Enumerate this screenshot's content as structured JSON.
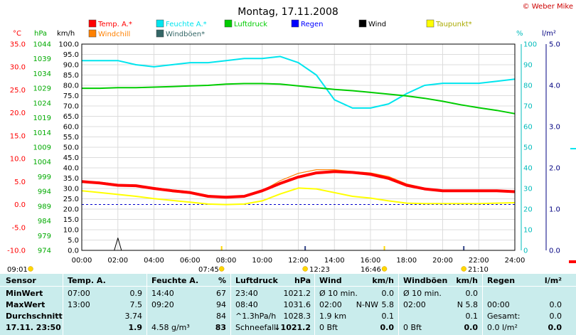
{
  "header": {
    "title": "Montag, 17.11.2008",
    "copyright": "© Weber Mike"
  },
  "axes_titles": {
    "temp": "°C",
    "hpa": "hPa",
    "kmh": "km/h",
    "pct": "%",
    "lm2": "l/m²"
  },
  "legend": [
    {
      "name": "Temp. A.*",
      "color": "#ff0000"
    },
    {
      "name": "Feuchte A.*",
      "color": "#00e5ee"
    },
    {
      "name": "Luftdruck",
      "color": "#00cc00"
    },
    {
      "name": "Regen",
      "color": "#0000ff"
    },
    {
      "name": "Wind",
      "color": "#000000"
    },
    {
      "name": "Taupunkt*",
      "color": "#ffff00"
    },
    {
      "name": "Windchill",
      "color": "#ff8000"
    },
    {
      "name": "Windböen*",
      "color": "#336666"
    }
  ],
  "sun": {
    "start": "09:01",
    "sunrise": "07:45",
    "noon": "12:23",
    "moon": "16:46",
    "sunset": "21:10"
  },
  "chart_data": {
    "type": "line",
    "title": "Montag, 17.11.2008",
    "x_ticks": [
      "00:00",
      "02:00",
      "04:00",
      "06:00",
      "08:00",
      "10:00",
      "12:00",
      "14:00",
      "16:00",
      "18:00",
      "20:00",
      "22:00",
      "24:00"
    ],
    "xlim": [
      0,
      24
    ],
    "axes": {
      "temp": {
        "ylim": [
          -10,
          35
        ],
        "ticks": [
          "35.0",
          "30.0",
          "25.0",
          "20.0",
          "15.0",
          "10.0",
          "5.0",
          "0.0",
          "-5.0",
          "-10.0"
        ]
      },
      "hpa": {
        "ylim": [
          974,
          1044
        ],
        "ticks": [
          "1044",
          "1039",
          "1034",
          "1029",
          "1024",
          "1019",
          "1014",
          "1009",
          "1004",
          "999",
          "994",
          "989",
          "984",
          "979",
          "974"
        ]
      },
      "kmh": {
        "ylim": [
          0,
          100
        ],
        "ticks": [
          "100.0",
          "95.0",
          "90.0",
          "85.0",
          "80.0",
          "75.0",
          "70.0",
          "65.0",
          "60.0",
          "55.0",
          "50.0",
          "45.0",
          "40.0",
          "35.0",
          "30.0",
          "25.0",
          "20.0",
          "15.0",
          "10.0",
          "5.0",
          "0.0"
        ]
      },
      "pct": {
        "ylim": [
          0,
          100
        ],
        "ticks": [
          "100",
          "90",
          "80",
          "70",
          "60",
          "50",
          "40",
          "30",
          "20",
          "10",
          "0"
        ]
      },
      "lm2": {
        "ylim": [
          0,
          5
        ],
        "ticks": [
          "5.0",
          "4.0",
          "3.0",
          "2.0",
          "1.0",
          "0.0"
        ]
      }
    },
    "series": [
      {
        "name": "Feuchte A.*",
        "axis": "pct",
        "color": "#00e5ee",
        "width": 2,
        "x": [
          0,
          1,
          2,
          3,
          4,
          5,
          6,
          7,
          8,
          9,
          10,
          11,
          12,
          13,
          14,
          15,
          16,
          17,
          18,
          19,
          20,
          21,
          22,
          23,
          24
        ],
        "y": [
          92,
          92,
          92,
          90,
          89,
          90,
          91,
          91,
          92,
          93,
          93,
          94,
          91,
          85,
          73,
          69,
          69,
          71,
          76,
          80,
          81,
          81,
          81,
          82,
          83
        ]
      },
      {
        "name": "Luftdruck",
        "axis": "hpa",
        "color": "#00cc00",
        "width": 2,
        "x": [
          0,
          1,
          2,
          3,
          4,
          5,
          6,
          7,
          8,
          9,
          10,
          11,
          12,
          13,
          14,
          15,
          16,
          17,
          18,
          19,
          20,
          21,
          22,
          23,
          24
        ],
        "y": [
          1029.0,
          1029.0,
          1029.2,
          1029.2,
          1029.4,
          1029.6,
          1029.8,
          1030.0,
          1030.4,
          1030.6,
          1030.6,
          1030.4,
          1029.8,
          1029.2,
          1028.6,
          1028.2,
          1027.6,
          1027.0,
          1026.4,
          1025.6,
          1024.6,
          1023.4,
          1022.4,
          1021.5,
          1020.4
        ]
      },
      {
        "name": "Taupunkt*",
        "axis": "temp",
        "color": "#ffff00",
        "width": 2,
        "x": [
          0,
          1,
          2,
          3,
          4,
          5,
          6,
          7,
          8,
          9,
          10,
          11,
          12,
          13,
          14,
          15,
          16,
          17,
          18,
          19,
          20,
          21,
          22,
          23,
          24
        ],
        "y": [
          3.0,
          2.6,
          2.2,
          1.8,
          1.3,
          0.9,
          0.5,
          0.1,
          0.0,
          0.1,
          0.8,
          2.3,
          3.6,
          3.4,
          2.6,
          1.8,
          1.4,
          0.8,
          0.3,
          0.2,
          0.2,
          0.2,
          0.2,
          0.3,
          0.4
        ]
      },
      {
        "name": "Windchill",
        "axis": "temp",
        "color": "#ff8000",
        "width": 1.2,
        "x": [
          0,
          1,
          2,
          3,
          4,
          5,
          6,
          7,
          8,
          9,
          10,
          11,
          12,
          13,
          14,
          15,
          16,
          17,
          18,
          19,
          20,
          21,
          22,
          23,
          24
        ],
        "y": [
          5.1,
          4.9,
          4.4,
          4.1,
          3.7,
          3.2,
          2.8,
          2.0,
          1.7,
          1.9,
          3.0,
          5.2,
          6.8,
          7.6,
          7.6,
          7.2,
          6.9,
          6.1,
          4.5,
          3.6,
          3.0,
          3.0,
          3.0,
          3.0,
          2.9
        ]
      },
      {
        "name": "Temp. A.*",
        "axis": "temp",
        "color": "#ff0000",
        "width": 4,
        "x": [
          0,
          1,
          2,
          3,
          4,
          5,
          6,
          7,
          8,
          9,
          10,
          11,
          12,
          13,
          14,
          15,
          16,
          17,
          18,
          19,
          20,
          21,
          22,
          23,
          24
        ],
        "y": [
          5.0,
          4.7,
          4.2,
          4.1,
          3.5,
          3.0,
          2.6,
          1.8,
          1.6,
          1.8,
          3.0,
          4.6,
          6.0,
          6.9,
          7.2,
          7.0,
          6.6,
          5.7,
          4.2,
          3.4,
          3.0,
          3.0,
          3.0,
          3.0,
          2.8
        ]
      },
      {
        "name": "Windböen*",
        "axis": "kmh",
        "color": "#000000",
        "width": 1,
        "x": [
          0,
          1.5,
          1.8,
          2.0,
          2.2,
          2.4,
          2.6,
          3.0,
          24
        ],
        "y": [
          0,
          0,
          0,
          6,
          0,
          0,
          0,
          0,
          0
        ]
      }
    ],
    "reference_line": {
      "axis": "temp",
      "value": 0,
      "color": "#0000cc"
    },
    "sun_markers_x": [
      7.75,
      12.38,
      16.77,
      21.17
    ]
  },
  "table": {
    "headers": {
      "sensor": "Sensor",
      "temp": "Temp. A.",
      "feuchte": "Feuchte A.",
      "feuchte_unit": "%",
      "luft": "Luftdruck",
      "luft_unit": "hPa",
      "wind": "Wind",
      "wind_unit": "km/h",
      "boen": "Windböen",
      "boen_unit": "km/h",
      "regen": "Regen",
      "regen_unit": "l/m²"
    },
    "rows": [
      {
        "label": "MinWert",
        "t_time": "07:00",
        "t_val": "0.9",
        "f_time": "14:40",
        "f_val": "67",
        "l_time": "23:40",
        "l_val": "1021.2",
        "w_time": "Ø 10 min.",
        "w_dir": "",
        "w_val": "0.0",
        "b_time": "Ø 10 min.",
        "b_dir": "",
        "b_val": "0.0",
        "r_time": "",
        "r_val": ""
      },
      {
        "label": "MaxWert",
        "t_time": "13:00",
        "t_val": "7.5",
        "f_time": "09:20",
        "f_val": "94",
        "l_time": "08:40",
        "l_val": "1031.6",
        "w_time": "02:00",
        "w_dir": "N-NW",
        "w_val": "5.8",
        "b_time": "02:00",
        "b_dir": "N",
        "b_val": "5.8",
        "r_time": "00:00",
        "r_val": "0.0"
      },
      {
        "label": "Durchschnitt",
        "t_time": "",
        "t_val": "3.74",
        "f_time": "",
        "f_val": "84",
        "l_time": "^1.3hPa/h",
        "l_val": "1028.3",
        "w_time": "1.9 km",
        "w_dir": "",
        "w_val": "0.1",
        "b_time": "",
        "b_dir": "",
        "b_val": "0.1",
        "r_time": "Gesamt:",
        "r_val": "0.0"
      },
      {
        "label": "17.11. 23:50",
        "t_time": "",
        "t_val": "1.9",
        "f_time": "4.58 g/m³",
        "f_val": "83",
        "l_time": "Schneefall",
        "l_arrow": "↓",
        "l_val": "1021.2",
        "w_time": "0 Bft",
        "w_dir": "",
        "w_val": "0.0",
        "b_time": "0 Bft",
        "b_dir": "",
        "b_val": "0.0",
        "r_time": "0.0 l/m²",
        "r_val": "0.0"
      }
    ]
  }
}
